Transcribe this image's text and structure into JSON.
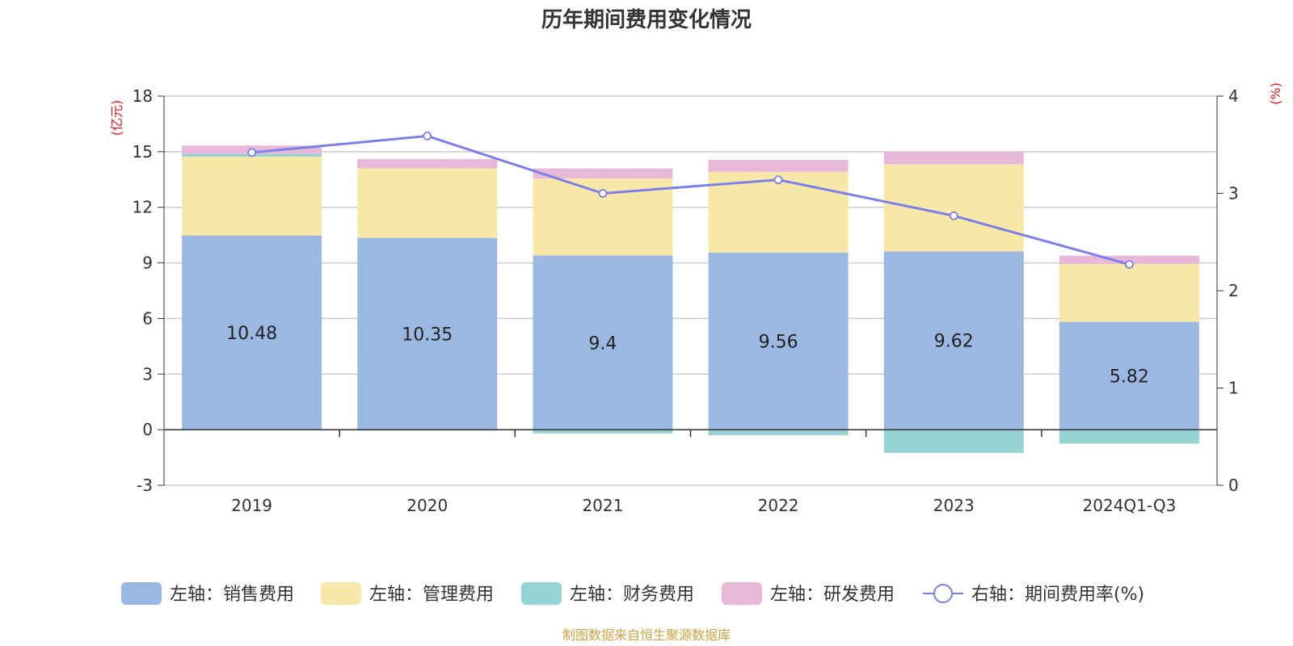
{
  "chart_data": {
    "type": "bar",
    "title": "历年期间费用变化情况",
    "categories": [
      "2019",
      "2020",
      "2021",
      "2022",
      "2023",
      "2024Q1-Q3"
    ],
    "left_axis": {
      "unit": "(亿元)",
      "ylim": [
        -3,
        18
      ],
      "ticks": [
        -3,
        0,
        3,
        6,
        9,
        12,
        15,
        18
      ]
    },
    "right_axis": {
      "unit": "(%)",
      "ylim": [
        0,
        4
      ],
      "ticks": [
        0,
        1,
        2,
        3,
        4
      ]
    },
    "series": [
      {
        "name": "左轴：销售费用",
        "type": "bar",
        "axis": "left",
        "color": "#9bb8e2",
        "values": [
          10.48,
          10.35,
          9.4,
          9.56,
          9.62,
          5.82
        ],
        "labels": [
          "10.48",
          "10.35",
          "9.4",
          "9.56",
          "9.62",
          "5.82"
        ]
      },
      {
        "name": "左轴：管理费用",
        "type": "bar",
        "axis": "left",
        "color": "#f8e8a8",
        "values": [
          4.25,
          3.75,
          4.15,
          4.35,
          4.7,
          3.12
        ]
      },
      {
        "name": "左轴：财务费用",
        "type": "bar",
        "axis": "left",
        "color": "#96d4d4",
        "values": [
          0.15,
          -0.05,
          -0.2,
          -0.3,
          -1.25,
          -0.75
        ]
      },
      {
        "name": "左轴：研发费用",
        "type": "bar",
        "axis": "left",
        "color": "#e8b8d8",
        "values": [
          0.45,
          0.5,
          0.55,
          0.65,
          0.7,
          0.45
        ]
      },
      {
        "name": "右轴：期间费用率(%)",
        "type": "line",
        "axis": "right",
        "color": "#7b7fe8",
        "values": [
          3.42,
          3.59,
          3.0,
          3.14,
          2.77,
          2.27
        ]
      }
    ],
    "grid": true,
    "legend_position": "bottom",
    "axis_unit_color": "#e8141e"
  },
  "source": {
    "text": "制图数据来自恒生聚源数据库",
    "color": "#d0a040"
  }
}
